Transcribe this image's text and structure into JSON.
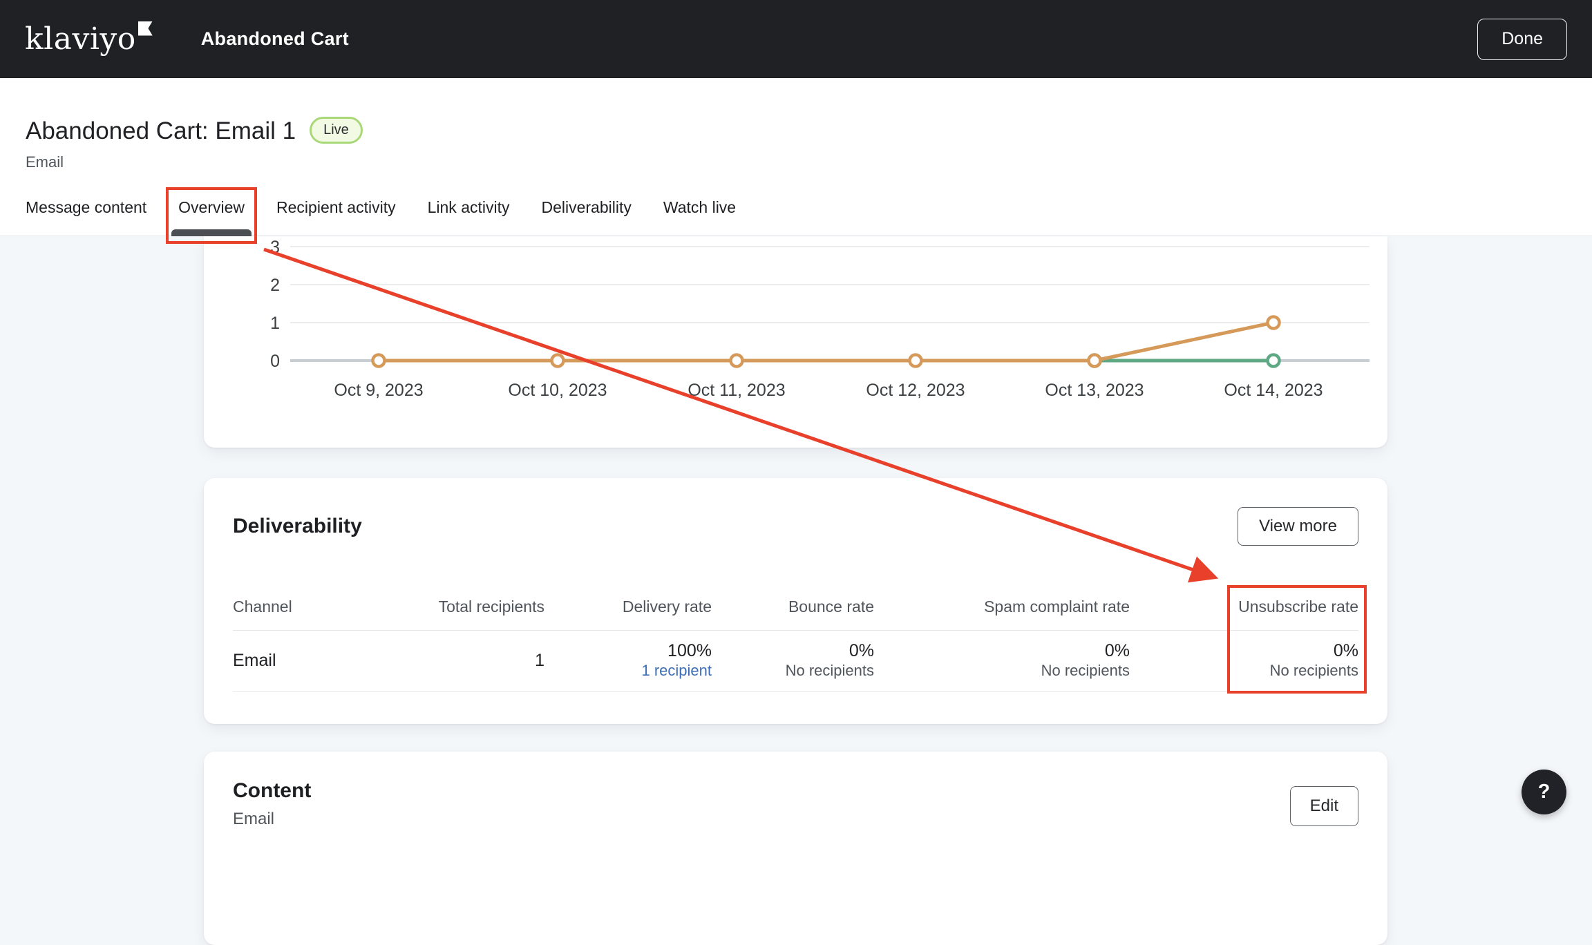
{
  "header": {
    "logo": "klaviyo",
    "title": "Abandoned Cart",
    "done_label": "Done"
  },
  "page": {
    "title": "Abandoned Cart: Email 1",
    "status_badge": "Live",
    "subtitle": "Email"
  },
  "tabs": [
    {
      "label": "Message content",
      "active": false
    },
    {
      "label": "Overview",
      "active": true
    },
    {
      "label": "Recipient activity",
      "active": false
    },
    {
      "label": "Link activity",
      "active": false
    },
    {
      "label": "Deliverability",
      "active": false
    },
    {
      "label": "Watch live",
      "active": false
    }
  ],
  "chart_data": {
    "type": "line",
    "x": [
      "Oct 9, 2023",
      "Oct 10, 2023",
      "Oct 11, 2023",
      "Oct 12, 2023",
      "Oct 13, 2023",
      "Oct 14, 2023"
    ],
    "yticks": [
      0,
      1,
      2,
      3
    ],
    "ylim": [
      0,
      3.3
    ],
    "grid": true,
    "legend": "none",
    "series": [
      {
        "name": "green-series",
        "color": "#5ea983",
        "values": [
          null,
          null,
          null,
          null,
          0,
          0
        ]
      },
      {
        "name": "orange-series",
        "color": "#d59a5a",
        "values": [
          0,
          0,
          0,
          0,
          0,
          1
        ]
      }
    ]
  },
  "deliverability": {
    "title": "Deliverability",
    "view_more_label": "View more",
    "columns": [
      "Channel",
      "Total recipients",
      "Delivery rate",
      "Bounce rate",
      "Spam complaint rate",
      "Unsubscribe rate"
    ],
    "row": {
      "channel": "Email",
      "total_recipients": "1",
      "delivery_rate": "100%",
      "delivery_rate_link": "1 recipient",
      "bounce_rate": "0%",
      "bounce_rate_sub": "No recipients",
      "spam_complaint_rate": "0%",
      "spam_complaint_rate_sub": "No recipients",
      "unsubscribe_rate": "0%",
      "unsubscribe_rate_sub": "No recipients"
    }
  },
  "content_card": {
    "title": "Content",
    "subtitle": "Email",
    "edit_label": "Edit"
  },
  "help_button": {
    "label": "?"
  },
  "colors": {
    "accent_red": "#e8402a",
    "link_blue": "#3d6eb5",
    "series_orange": "#d59a5a",
    "series_green": "#5ea983",
    "live_badge_border": "#a9d878",
    "header_bg": "#1f2124"
  }
}
